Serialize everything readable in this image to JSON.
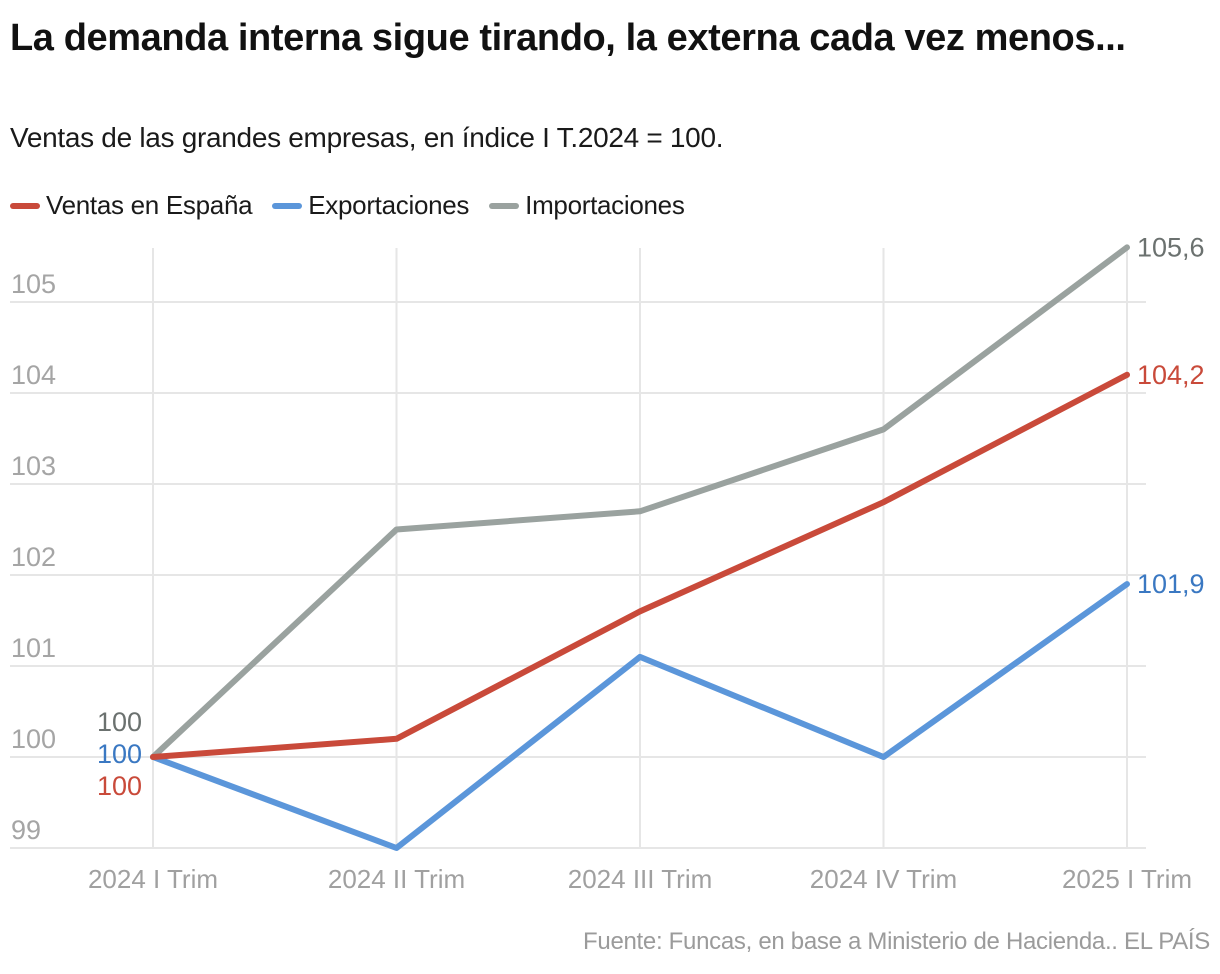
{
  "header": {
    "title": "La demanda interna sigue tirando, la externa cada vez menos...",
    "subtitle": "Ventas de las grandes empresas, en índice I T.2024 = 100."
  },
  "footer": {
    "source": "Fuente: Funcas, en base a Ministerio de Hacienda.. EL PAÍS"
  },
  "chart_data": {
    "type": "line",
    "title": "La demanda interna sigue tirando, la externa cada vez menos...",
    "subtitle": "Ventas de las grandes empresas, en índice I T.2024 = 100.",
    "xlabel": "",
    "ylabel": "",
    "categories": [
      "2024 I Trim",
      "2024 II Trim",
      "2024 III Trim",
      "2024 IV Trim",
      "2025 I Trim"
    ],
    "ylim": [
      99,
      105.6
    ],
    "yticks": [
      99,
      100,
      101,
      102,
      103,
      104,
      105
    ],
    "grid": true,
    "legend_position": "top-left",
    "series": [
      {
        "name": "Ventas en España",
        "color": "#c94a3a",
        "label_color": "#c94a3a",
        "values": [
          100,
          100.2,
          101.6,
          102.8,
          104.2
        ],
        "start_label": "100",
        "end_label": "104,2"
      },
      {
        "name": "Exportaciones",
        "color": "#5b96da",
        "label_color": "#3a78c2",
        "values": [
          100,
          99.0,
          101.1,
          100.0,
          101.9
        ],
        "start_label": "100",
        "end_label": "101,9"
      },
      {
        "name": "Importaciones",
        "color": "#9aa29f",
        "label_color": "#6b716f",
        "values": [
          100,
          102.5,
          102.7,
          103.6,
          105.6
        ],
        "start_label": "100",
        "end_label": "105,6"
      }
    ],
    "source": "Fuente: Funcas, en base a Ministerio de Hacienda.. EL PAÍS"
  }
}
